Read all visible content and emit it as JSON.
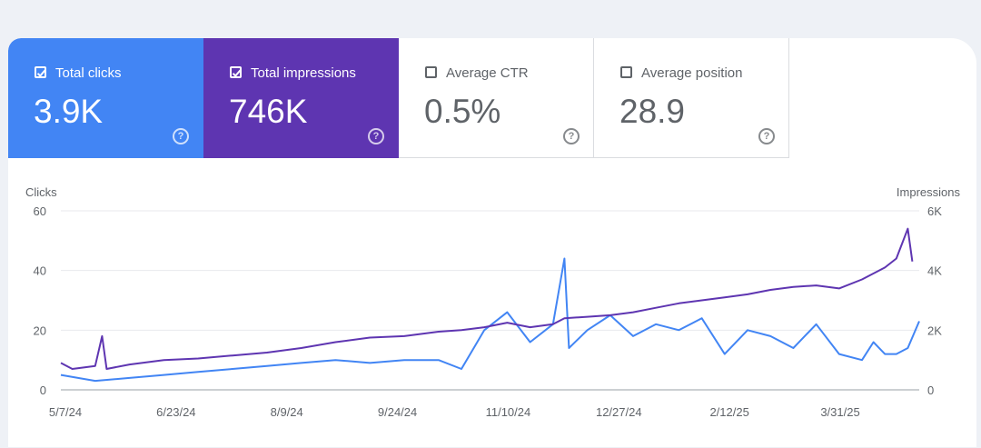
{
  "metrics": [
    {
      "label": "Total clicks",
      "value": "3.9K",
      "checked": true
    },
    {
      "label": "Total impressions",
      "value": "746K",
      "checked": true
    },
    {
      "label": "Average CTR",
      "value": "0.5%",
      "checked": false
    },
    {
      "label": "Average position",
      "value": "28.9",
      "checked": false
    }
  ],
  "help_glyph": "?",
  "colors": {
    "clicks": "#4285f4",
    "impressions": "#5e35b1",
    "grid": "#e8eaed"
  },
  "chart_data": {
    "type": "line",
    "left_axis": {
      "label": "Clicks",
      "ticks": [
        "0",
        "20",
        "40",
        "60"
      ],
      "range": [
        0,
        60
      ]
    },
    "right_axis": {
      "label": "Impressions",
      "ticks": [
        "0",
        "2K",
        "4K",
        "6K"
      ],
      "range": [
        0,
        6000
      ]
    },
    "x_ticks": [
      "5/7/24",
      "6/23/24",
      "8/9/24",
      "9/24/24",
      "11/10/24",
      "12/27/24",
      "2/12/25",
      "3/31/25"
    ],
    "x_range_days": [
      0,
      375
    ],
    "series": [
      {
        "name": "Clicks",
        "axis": "left",
        "color": "#4285f4",
        "points": [
          [
            0,
            5
          ],
          [
            15,
            3
          ],
          [
            30,
            4
          ],
          [
            45,
            5
          ],
          [
            60,
            6
          ],
          [
            75,
            7
          ],
          [
            90,
            8
          ],
          [
            105,
            9
          ],
          [
            120,
            10
          ],
          [
            135,
            9
          ],
          [
            150,
            10
          ],
          [
            165,
            10
          ],
          [
            175,
            7
          ],
          [
            185,
            20
          ],
          [
            195,
            26
          ],
          [
            205,
            16
          ],
          [
            215,
            22
          ],
          [
            220,
            44
          ],
          [
            222,
            14
          ],
          [
            230,
            20
          ],
          [
            240,
            25
          ],
          [
            250,
            18
          ],
          [
            260,
            22
          ],
          [
            270,
            20
          ],
          [
            280,
            24
          ],
          [
            290,
            12
          ],
          [
            300,
            20
          ],
          [
            310,
            18
          ],
          [
            320,
            14
          ],
          [
            330,
            22
          ],
          [
            340,
            12
          ],
          [
            350,
            10
          ],
          [
            355,
            16
          ],
          [
            360,
            12
          ],
          [
            365,
            12
          ],
          [
            370,
            14
          ],
          [
            375,
            23
          ]
        ]
      },
      {
        "name": "Impressions",
        "axis": "right",
        "color": "#5e35b1",
        "points": [
          [
            0,
            900
          ],
          [
            5,
            700
          ],
          [
            15,
            800
          ],
          [
            18,
            1800
          ],
          [
            20,
            700
          ],
          [
            30,
            850
          ],
          [
            45,
            1000
          ],
          [
            60,
            1050
          ],
          [
            75,
            1150
          ],
          [
            90,
            1250
          ],
          [
            105,
            1400
          ],
          [
            120,
            1600
          ],
          [
            135,
            1750
          ],
          [
            150,
            1800
          ],
          [
            165,
            1950
          ],
          [
            175,
            2000
          ],
          [
            185,
            2100
          ],
          [
            195,
            2250
          ],
          [
            205,
            2100
          ],
          [
            215,
            2200
          ],
          [
            220,
            2400
          ],
          [
            230,
            2450
          ],
          [
            240,
            2500
          ],
          [
            250,
            2600
          ],
          [
            260,
            2750
          ],
          [
            270,
            2900
          ],
          [
            280,
            3000
          ],
          [
            290,
            3100
          ],
          [
            300,
            3200
          ],
          [
            310,
            3350
          ],
          [
            320,
            3450
          ],
          [
            330,
            3500
          ],
          [
            340,
            3400
          ],
          [
            350,
            3700
          ],
          [
            360,
            4100
          ],
          [
            365,
            4400
          ],
          [
            370,
            5400
          ],
          [
            372,
            4300
          ]
        ]
      }
    ]
  }
}
